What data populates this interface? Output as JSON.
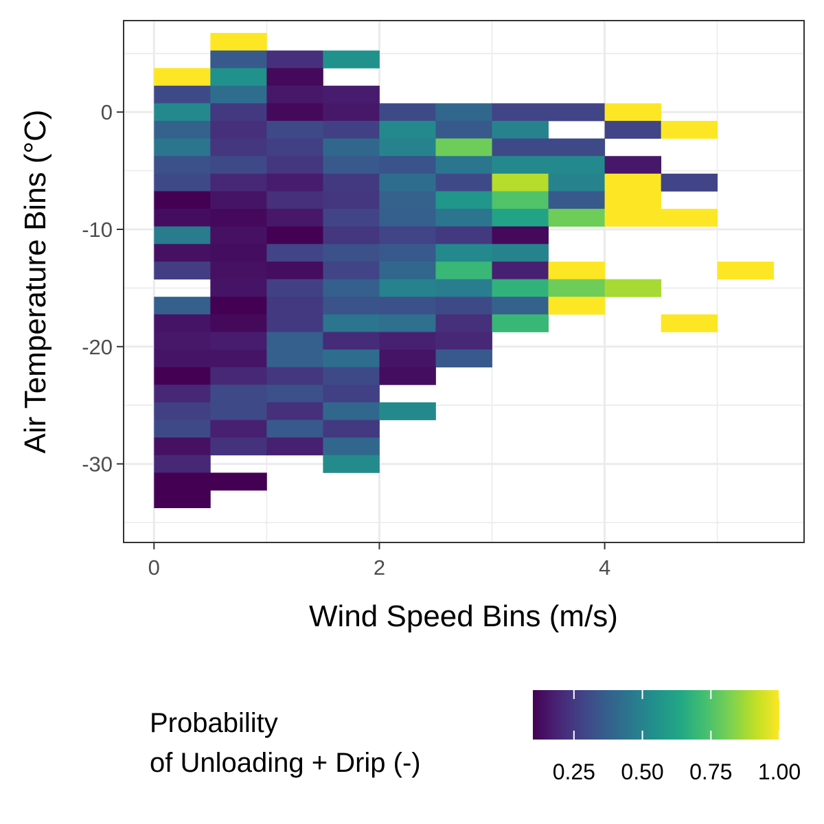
{
  "chart_data": {
    "type": "heatmap",
    "title": "",
    "xlabel": "Wind Speed Bins (m/s)",
    "ylabel": "Air Temperature Bins (°C)",
    "xlim": [
      -0.27,
      5.77
    ],
    "ylim": [
      -36.7,
      7.8
    ],
    "x_ticks": [
      0,
      2,
      4
    ],
    "x_tick_labels": [
      "0",
      "2",
      "4"
    ],
    "y_ticks": [
      0,
      -10,
      -20,
      -30
    ],
    "y_tick_labels": [
      "0",
      "-10",
      "-20",
      "-30"
    ],
    "cell_width": 0.5,
    "cell_height": 1.5,
    "x_bins": [
      0.25,
      0.75,
      1.25,
      1.75,
      2.25,
      2.75,
      3.25,
      3.75,
      4.25,
      4.75,
      5.25
    ],
    "grid": true,
    "legend_position": "bottom",
    "colorscale": "viridis",
    "legend": {
      "title_lines": [
        "Probability",
        "of Unloading + Drip (-)"
      ],
      "range": [
        0.1,
        1.0
      ],
      "ticks": [
        0.25,
        0.5,
        0.75,
        1.0
      ],
      "tick_labels": [
        "0.25",
        "0.50",
        "0.75",
        "1.00"
      ]
    },
    "cells": [
      {
        "y": 6.0,
        "values": [
          null,
          1.0,
          null,
          null,
          null,
          null,
          null,
          null,
          null,
          null,
          null
        ]
      },
      {
        "y": 4.5,
        "values": [
          null,
          0.35,
          0.22,
          0.55,
          null,
          null,
          null,
          null,
          null,
          null,
          null
        ]
      },
      {
        "y": 3.0,
        "values": [
          1.0,
          0.55,
          0.12,
          null,
          null,
          null,
          null,
          null,
          null,
          null,
          null
        ]
      },
      {
        "y": 1.5,
        "values": [
          0.3,
          0.42,
          0.16,
          0.17,
          null,
          null,
          null,
          null,
          null,
          null,
          null
        ]
      },
      {
        "y": 0.0,
        "values": [
          0.52,
          0.25,
          0.12,
          0.16,
          0.3,
          0.4,
          0.28,
          0.28,
          1.0,
          null,
          null
        ]
      },
      {
        "y": -1.5,
        "values": [
          0.38,
          0.22,
          0.3,
          0.27,
          0.52,
          0.35,
          0.5,
          null,
          0.28,
          1.0,
          null
        ]
      },
      {
        "y": -3.0,
        "values": [
          0.45,
          0.24,
          0.27,
          0.4,
          0.5,
          0.8,
          0.3,
          0.3,
          null,
          null,
          null
        ]
      },
      {
        "y": -4.5,
        "values": [
          0.32,
          0.3,
          0.24,
          0.35,
          0.33,
          0.45,
          0.52,
          0.52,
          0.16,
          null,
          null
        ]
      },
      {
        "y": -6.0,
        "values": [
          0.3,
          0.2,
          0.17,
          0.25,
          0.42,
          0.3,
          0.9,
          0.5,
          1.0,
          0.28,
          null
        ]
      },
      {
        "y": -7.5,
        "values": [
          0.08,
          0.15,
          0.22,
          0.24,
          0.38,
          0.57,
          0.75,
          0.35,
          1.0,
          null,
          null
        ]
      },
      {
        "y": -9.0,
        "values": [
          0.13,
          0.12,
          0.16,
          0.28,
          0.37,
          0.45,
          0.62,
          0.8,
          1.0,
          1.0,
          null
        ]
      },
      {
        "y": -10.5,
        "values": [
          0.47,
          0.14,
          0.1,
          0.24,
          0.28,
          0.25,
          0.12,
          null,
          null,
          null,
          null
        ]
      },
      {
        "y": -12.0,
        "values": [
          0.14,
          0.13,
          0.28,
          0.32,
          0.35,
          0.52,
          0.5,
          null,
          null,
          null,
          null
        ]
      },
      {
        "y": -13.5,
        "values": [
          0.26,
          0.14,
          0.13,
          0.28,
          0.4,
          0.7,
          0.18,
          1.0,
          null,
          null,
          1.0
        ]
      },
      {
        "y": -15.0,
        "values": [
          null,
          0.15,
          0.27,
          0.37,
          0.5,
          0.48,
          0.68,
          0.8,
          0.88,
          null,
          null
        ]
      },
      {
        "y": -16.5,
        "values": [
          0.37,
          0.1,
          0.25,
          0.33,
          0.32,
          0.3,
          0.38,
          1.0,
          null,
          null,
          null
        ]
      },
      {
        "y": -18.0,
        "values": [
          0.15,
          0.12,
          0.25,
          0.45,
          0.43,
          0.22,
          0.7,
          null,
          null,
          1.0,
          null
        ]
      },
      {
        "y": -19.5,
        "values": [
          0.16,
          0.17,
          0.37,
          0.21,
          0.18,
          0.2,
          null,
          null,
          null,
          null,
          null
        ]
      },
      {
        "y": -21.0,
        "values": [
          0.15,
          0.15,
          0.37,
          0.42,
          0.15,
          0.35,
          null,
          null,
          null,
          null,
          null
        ]
      },
      {
        "y": -22.5,
        "values": [
          0.08,
          0.2,
          0.24,
          0.3,
          0.13,
          null,
          null,
          null,
          null,
          null,
          null
        ]
      },
      {
        "y": -24.0,
        "values": [
          0.2,
          0.3,
          0.32,
          0.27,
          null,
          null,
          null,
          null,
          null,
          null,
          null
        ]
      },
      {
        "y": -25.5,
        "values": [
          0.27,
          0.3,
          0.22,
          0.4,
          0.52,
          null,
          null,
          null,
          null,
          null,
          null
        ]
      },
      {
        "y": -27.0,
        "values": [
          0.3,
          0.18,
          0.35,
          0.25,
          null,
          null,
          null,
          null,
          null,
          null,
          null
        ]
      },
      {
        "y": -28.5,
        "values": [
          0.14,
          0.23,
          0.18,
          0.4,
          null,
          null,
          null,
          null,
          null,
          null,
          null
        ]
      },
      {
        "y": -30.0,
        "values": [
          0.2,
          null,
          null,
          0.53,
          null,
          null,
          null,
          null,
          null,
          null,
          null
        ]
      },
      {
        "y": -31.5,
        "values": [
          0.1,
          0.05,
          null,
          null,
          null,
          null,
          null,
          null,
          null,
          null,
          null
        ]
      },
      {
        "y": -33.0,
        "values": [
          0.0,
          null,
          null,
          null,
          null,
          null,
          null,
          null,
          null,
          null,
          null
        ]
      }
    ]
  }
}
